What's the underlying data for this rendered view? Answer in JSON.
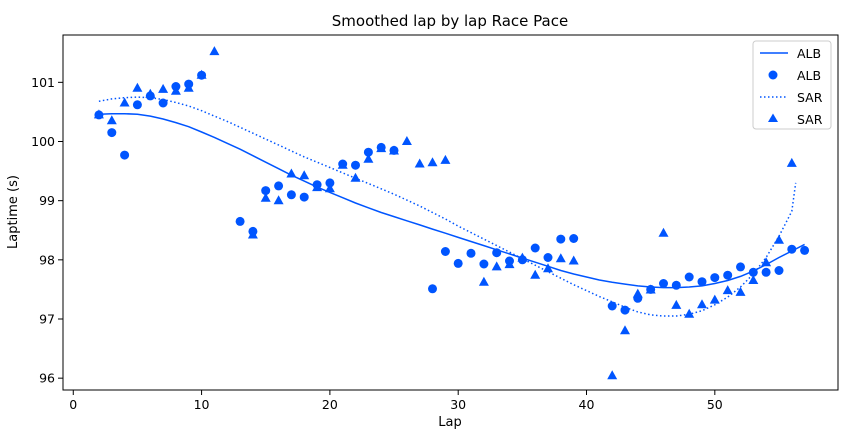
{
  "chart_data": {
    "type": "scatter",
    "title": "Smoothed lap by lap Race Pace",
    "xlabel": "Lap",
    "ylabel": "Laptime (s)",
    "xlim": [
      -0.8,
      59.6
    ],
    "ylim": [
      95.8,
      101.8
    ],
    "xticks": [
      0,
      10,
      20,
      30,
      40,
      50
    ],
    "yticks": [
      96,
      97,
      98,
      99,
      100,
      101
    ],
    "grid": false,
    "legend_position": "top-right",
    "color": "#0055ff",
    "series": [
      {
        "name": "ALB",
        "kind": "line",
        "style": "solid",
        "points": [
          [
            2,
            100.46
          ],
          [
            3,
            100.47
          ],
          [
            4,
            100.47
          ],
          [
            5,
            100.46
          ],
          [
            6,
            100.43
          ],
          [
            7,
            100.38
          ],
          [
            8,
            100.32
          ],
          [
            9,
            100.25
          ],
          [
            10,
            100.16
          ],
          [
            11,
            100.07
          ],
          [
            12,
            99.97
          ],
          [
            13,
            99.87
          ],
          [
            14,
            99.76
          ],
          [
            15,
            99.65
          ],
          [
            16,
            99.54
          ],
          [
            17,
            99.43
          ],
          [
            18,
            99.33
          ],
          [
            19,
            99.23
          ],
          [
            20,
            99.14
          ],
          [
            21,
            99.05
          ],
          [
            22,
            98.96
          ],
          [
            23,
            98.88
          ],
          [
            24,
            98.8
          ],
          [
            25,
            98.73
          ],
          [
            26,
            98.66
          ],
          [
            27,
            98.59
          ],
          [
            28,
            98.52
          ],
          [
            29,
            98.45
          ],
          [
            30,
            98.38
          ],
          [
            31,
            98.31
          ],
          [
            32,
            98.24
          ],
          [
            33,
            98.17
          ],
          [
            34,
            98.1
          ],
          [
            35,
            98.03
          ],
          [
            36,
            97.96
          ],
          [
            37,
            97.89
          ],
          [
            38,
            97.82
          ],
          [
            39,
            97.76
          ],
          [
            40,
            97.71
          ],
          [
            41,
            97.66
          ],
          [
            42,
            97.62
          ],
          [
            43,
            97.59
          ],
          [
            44,
            97.56
          ],
          [
            45,
            97.54
          ],
          [
            46,
            97.53
          ],
          [
            47,
            97.53
          ],
          [
            48,
            97.54
          ],
          [
            49,
            97.56
          ],
          [
            50,
            97.6
          ],
          [
            51,
            97.65
          ],
          [
            52,
            97.72
          ],
          [
            53,
            97.81
          ],
          [
            54,
            97.92
          ],
          [
            55,
            98.04
          ],
          [
            56,
            98.15
          ],
          [
            57,
            98.26
          ]
        ]
      },
      {
        "name": "ALB",
        "kind": "scatter",
        "marker": "circle",
        "points": [
          [
            2,
            100.45
          ],
          [
            3,
            100.15
          ],
          [
            4,
            99.77
          ],
          [
            5,
            100.62
          ],
          [
            6,
            100.77
          ],
          [
            7,
            100.65
          ],
          [
            8,
            100.93
          ],
          [
            9,
            100.97
          ],
          [
            10,
            101.12
          ],
          [
            13,
            98.65
          ],
          [
            14,
            98.48
          ],
          [
            15,
            99.17
          ],
          [
            16,
            99.25
          ],
          [
            17,
            99.1
          ],
          [
            18,
            99.06
          ],
          [
            19,
            99.27
          ],
          [
            20,
            99.3
          ],
          [
            21,
            99.62
          ],
          [
            22,
            99.6
          ],
          [
            23,
            99.82
          ],
          [
            24,
            99.9
          ],
          [
            25,
            99.85
          ],
          [
            28,
            97.51
          ],
          [
            29,
            98.14
          ],
          [
            30,
            97.94
          ],
          [
            31,
            98.11
          ],
          [
            32,
            97.93
          ],
          [
            33,
            98.12
          ],
          [
            34,
            97.98
          ],
          [
            35,
            98.0
          ],
          [
            36,
            98.2
          ],
          [
            37,
            98.04
          ],
          [
            38,
            98.35
          ],
          [
            39,
            98.36
          ],
          [
            42,
            97.22
          ],
          [
            43,
            97.15
          ],
          [
            44,
            97.35
          ],
          [
            45,
            97.5
          ],
          [
            46,
            97.6
          ],
          [
            47,
            97.57
          ],
          [
            48,
            97.71
          ],
          [
            49,
            97.63
          ],
          [
            50,
            97.7
          ],
          [
            51,
            97.74
          ],
          [
            52,
            97.88
          ],
          [
            53,
            97.79
          ],
          [
            54,
            97.79
          ],
          [
            55,
            97.82
          ],
          [
            56,
            98.18
          ],
          [
            57,
            98.16
          ]
        ]
      },
      {
        "name": "SAR",
        "kind": "line",
        "style": "dotted",
        "points": [
          [
            2,
            100.68
          ],
          [
            3,
            100.72
          ],
          [
            4,
            100.74
          ],
          [
            5,
            100.75
          ],
          [
            6,
            100.74
          ],
          [
            7,
            100.71
          ],
          [
            8,
            100.66
          ],
          [
            9,
            100.6
          ],
          [
            10,
            100.52
          ],
          [
            11,
            100.43
          ],
          [
            12,
            100.34
          ],
          [
            13,
            100.24
          ],
          [
            14,
            100.14
          ],
          [
            15,
            100.04
          ],
          [
            16,
            99.94
          ],
          [
            17,
            99.84
          ],
          [
            18,
            99.74
          ],
          [
            19,
            99.65
          ],
          [
            20,
            99.56
          ],
          [
            21,
            99.47
          ],
          [
            22,
            99.38
          ],
          [
            23,
            99.29
          ],
          [
            24,
            99.2
          ],
          [
            25,
            99.11
          ],
          [
            26,
            99.01
          ],
          [
            27,
            98.91
          ],
          [
            28,
            98.8
          ],
          [
            29,
            98.69
          ],
          [
            30,
            98.57
          ],
          [
            31,
            98.46
          ],
          [
            32,
            98.35
          ],
          [
            33,
            98.24
          ],
          [
            34,
            98.13
          ],
          [
            35,
            98.02
          ],
          [
            36,
            97.91
          ],
          [
            37,
            97.8
          ],
          [
            38,
            97.69
          ],
          [
            39,
            97.58
          ],
          [
            40,
            97.48
          ],
          [
            41,
            97.38
          ],
          [
            42,
            97.29
          ],
          [
            43,
            97.2
          ],
          [
            44,
            97.12
          ],
          [
            45,
            97.07
          ],
          [
            46,
            97.05
          ],
          [
            47,
            97.05
          ],
          [
            48,
            97.08
          ],
          [
            49,
            97.14
          ],
          [
            50,
            97.24
          ],
          [
            51,
            97.37
          ],
          [
            52,
            97.54
          ],
          [
            53,
            97.76
          ],
          [
            54,
            98.04
          ],
          [
            55,
            98.4
          ],
          [
            56,
            98.82
          ],
          [
            56.3,
            99.3
          ]
        ]
      },
      {
        "name": "SAR",
        "kind": "scatter",
        "marker": "triangle",
        "points": [
          [
            2,
            100.45
          ],
          [
            3,
            100.35
          ],
          [
            4,
            100.65
          ],
          [
            5,
            100.9
          ],
          [
            6,
            100.8
          ],
          [
            7,
            100.88
          ],
          [
            8,
            100.85
          ],
          [
            9,
            100.9
          ],
          [
            10,
            101.12
          ],
          [
            11,
            101.52
          ],
          [
            14,
            98.42
          ],
          [
            15,
            99.04
          ],
          [
            16,
            99.0
          ],
          [
            17,
            99.45
          ],
          [
            18,
            99.42
          ],
          [
            19,
            99.22
          ],
          [
            20,
            99.2
          ],
          [
            21,
            99.6
          ],
          [
            22,
            99.38
          ],
          [
            23,
            99.7
          ],
          [
            24,
            99.88
          ],
          [
            25,
            99.84
          ],
          [
            26,
            100.0
          ],
          [
            27,
            99.62
          ],
          [
            28,
            99.64
          ],
          [
            29,
            99.68
          ],
          [
            32,
            97.62
          ],
          [
            33,
            97.88
          ],
          [
            34,
            97.92
          ],
          [
            35,
            98.03
          ],
          [
            36,
            97.74
          ],
          [
            37,
            97.85
          ],
          [
            38,
            98.02
          ],
          [
            39,
            97.98
          ],
          [
            42,
            96.04
          ],
          [
            43,
            96.8
          ],
          [
            44,
            97.42
          ],
          [
            45,
            97.49
          ],
          [
            46,
            98.45
          ],
          [
            47,
            97.23
          ],
          [
            48,
            97.08
          ],
          [
            49,
            97.24
          ],
          [
            50,
            97.32
          ],
          [
            51,
            97.48
          ],
          [
            52,
            97.45
          ],
          [
            53,
            97.65
          ],
          [
            54,
            97.95
          ],
          [
            55,
            98.33
          ],
          [
            56,
            99.63
          ]
        ]
      }
    ]
  }
}
